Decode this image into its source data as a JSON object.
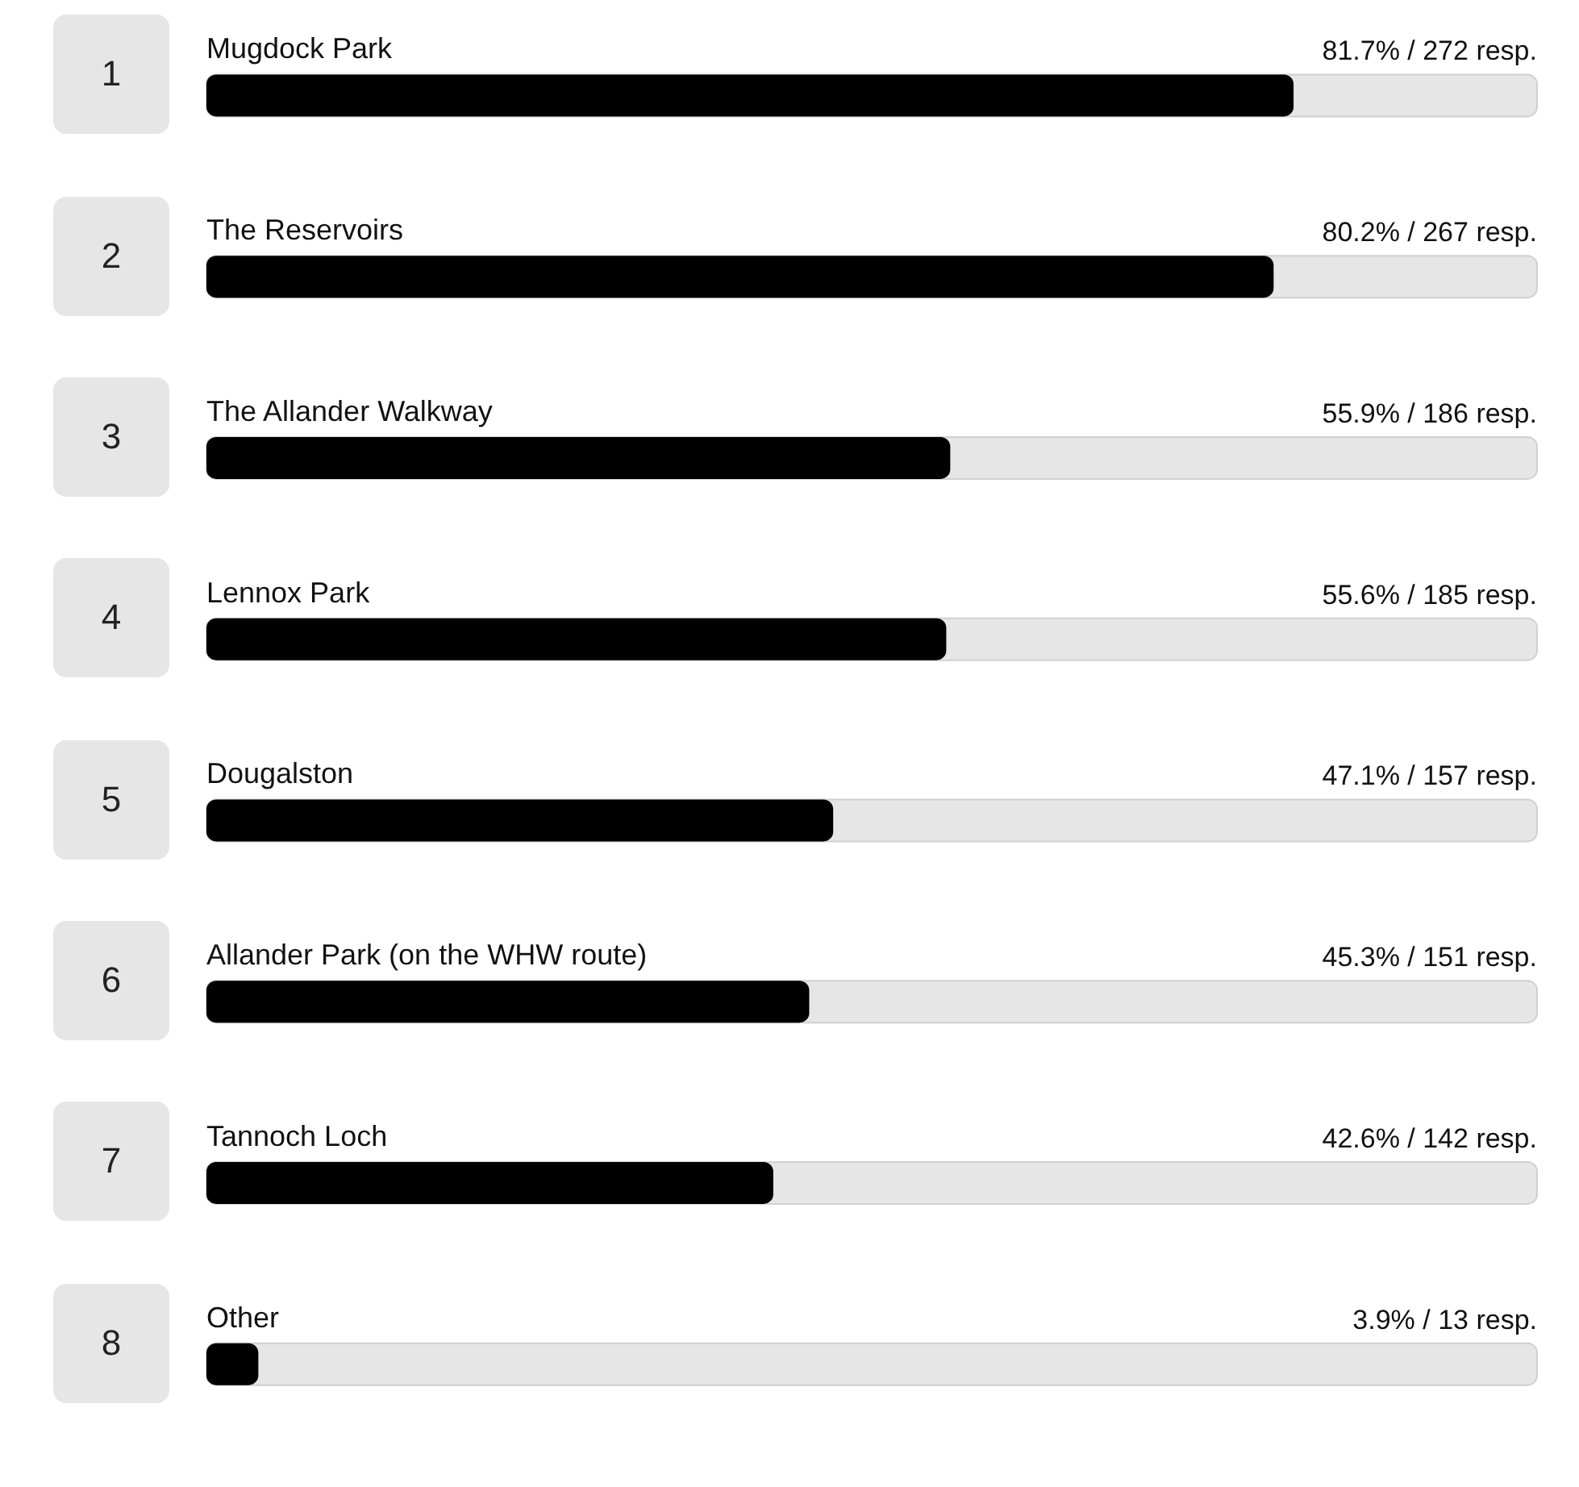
{
  "chart_data": {
    "type": "bar",
    "orientation": "horizontal",
    "categories": [
      "Mugdock Park",
      "The Reservoirs",
      "The Allander Walkway",
      "Lennox Park",
      "Dougalston",
      "Allander Park (on the WHW route)",
      "Tannoch Loch",
      "Other"
    ],
    "values": [
      81.7,
      80.2,
      55.9,
      55.6,
      47.1,
      45.3,
      42.6,
      3.9
    ],
    "color": "#000000",
    "value_labels": [
      "81.7% / 272 resp.",
      "80.2% / 267 resp.",
      "55.9% / 186 resp.",
      "55.6% / 185 resp.",
      "47.1% / 157 resp.",
      "45.3% / 151 resp.",
      "42.6% / 142 resp.",
      "3.9% / 13 resp."
    ],
    "tick_labels": false,
    "annotations": [
      "1",
      "2",
      "3",
      "4",
      "5",
      "6",
      "7",
      "8"
    ]
  }
}
